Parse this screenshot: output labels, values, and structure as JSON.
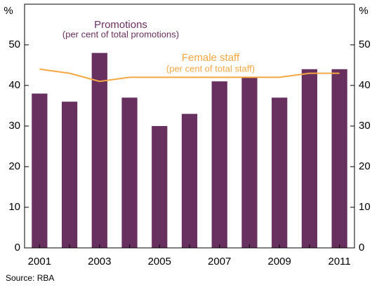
{
  "chart_data": {
    "type": "bar",
    "categories": [
      "2001",
      null,
      "2003",
      null,
      "2005",
      null,
      "2007",
      null,
      "2009",
      null,
      "2011"
    ],
    "series": [
      {
        "name": "Promotions",
        "note": "(per cent of total promotions)",
        "type": "bar",
        "color": "#68305f",
        "values": [
          38,
          36,
          48,
          37,
          30,
          33,
          41,
          42,
          37,
          44,
          44
        ]
      },
      {
        "name": "Female staff",
        "note": "(per cent of total staff)",
        "type": "line",
        "color": "#f5a742",
        "values": [
          44,
          43,
          41,
          42,
          42,
          42,
          42,
          42,
          42,
          43,
          43
        ]
      }
    ],
    "ylim": [
      0,
      60
    ],
    "yticks": [
      0,
      10,
      20,
      30,
      40,
      50
    ],
    "y_unit": "%",
    "y2lim": [
      0,
      60
    ],
    "y2ticks": [
      0,
      10,
      20,
      30,
      40,
      50
    ],
    "y2_unit": "%",
    "grid": false,
    "source": "Source: RBA"
  }
}
